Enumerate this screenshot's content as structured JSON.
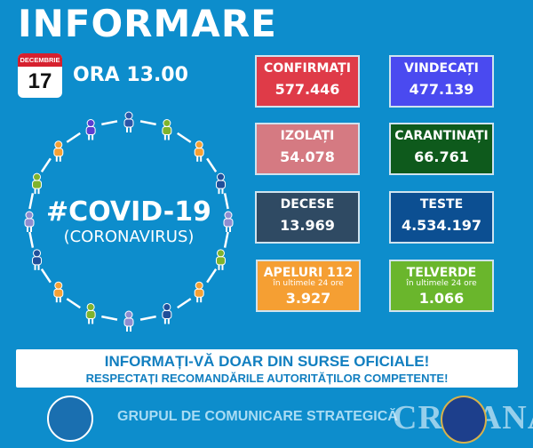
{
  "header": {
    "title": "INFORMARE",
    "month": "DECEMBRIE",
    "day": "17",
    "time": "ORA 13.00"
  },
  "stats": [
    {
      "label": "CONFIRMAȚI",
      "value": "577.446",
      "color": "#df3b48"
    },
    {
      "label": "VINDECAȚI",
      "value": "477.139",
      "color": "#4a4af0"
    },
    {
      "label": "IZOLAȚI",
      "value": "54.078",
      "color": "#d57a82"
    },
    {
      "label": "CARANTINAȚI",
      "value": "66.761",
      "color": "#0e5a1c"
    },
    {
      "label": "DECESE",
      "value": "13.969",
      "color": "#2f4a63"
    },
    {
      "label": "TESTE",
      "value": "4.534.197",
      "color": "#0c4f92"
    },
    {
      "label": "APELURI 112",
      "sub": "în ultimele 24 ore",
      "value": "3.927",
      "color": "#f59f33"
    },
    {
      "label": "TELVERDE",
      "sub": "în ultimele 24 ore",
      "value": "1.066",
      "color": "#6ab62c"
    }
  ],
  "covid": {
    "hashtag": "#COVID-19",
    "sub": "(CORONAVIRUS)"
  },
  "banner": {
    "line1": "INFORMAȚI-VĂ DOAR DIN SURSE OFICIALE!",
    "line2": "RESPECTAȚI RECOMANDĂRILE AUTORITĂȚILOR COMPETENTE!"
  },
  "footer": {
    "text": "GRUPUL DE COMUNICARE STRATEGICĂ",
    "logo_left": "GUVERNUL ROMÂNIEI",
    "logo_right": "MAI",
    "watermark": "CRIȘANA"
  }
}
